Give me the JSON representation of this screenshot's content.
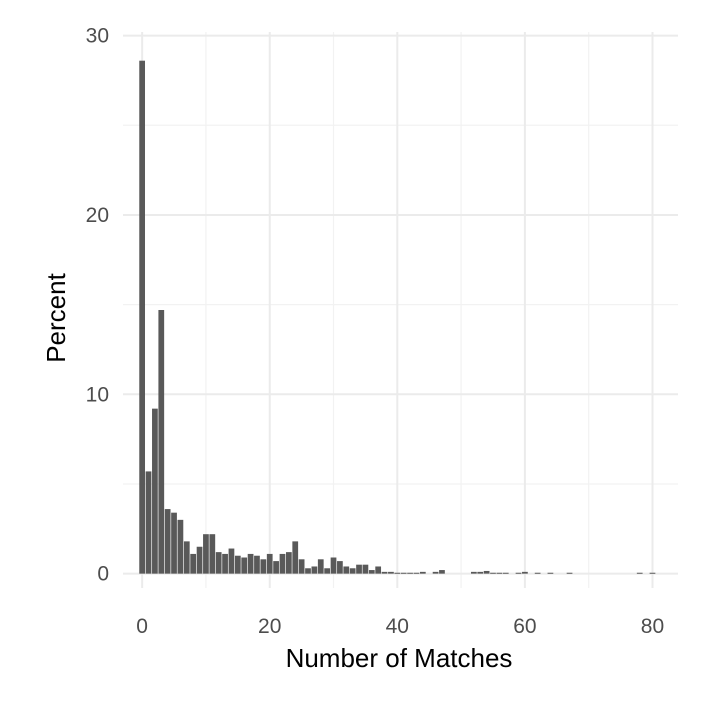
{
  "chart_data": {
    "type": "bar",
    "xlabel": "Number of Matches",
    "ylabel": "Percent",
    "xlim": [
      -3,
      84
    ],
    "ylim": [
      -0.8,
      30.2
    ],
    "x_ticks": [
      0,
      20,
      40,
      60,
      80
    ],
    "y_ticks": [
      0,
      10,
      20,
      30
    ],
    "grid": true,
    "bar_color": "#595959",
    "x": [
      0,
      1,
      2,
      3,
      4,
      5,
      6,
      7,
      8,
      9,
      10,
      11,
      12,
      13,
      14,
      15,
      16,
      17,
      18,
      19,
      20,
      21,
      22,
      23,
      24,
      25,
      26,
      27,
      28,
      29,
      30,
      31,
      32,
      33,
      34,
      35,
      36,
      37,
      38,
      39,
      40,
      41,
      42,
      43,
      44,
      45,
      46,
      47,
      48,
      49,
      50,
      51,
      52,
      53,
      54,
      55,
      56,
      57,
      58,
      59,
      60,
      61,
      62,
      63,
      64,
      65,
      66,
      67,
      68,
      69,
      70,
      71,
      72,
      73,
      74,
      75,
      76,
      77,
      78,
      79,
      80
    ],
    "values": [
      28.6,
      5.7,
      9.2,
      14.7,
      3.6,
      3.4,
      3.0,
      1.8,
      1.1,
      1.5,
      2.2,
      2.2,
      1.2,
      1.1,
      1.4,
      1.0,
      0.9,
      1.1,
      1.0,
      0.8,
      1.1,
      0.7,
      1.1,
      1.2,
      1.8,
      0.8,
      0.3,
      0.4,
      0.8,
      0.3,
      0.9,
      0.7,
      0.4,
      0.3,
      0.5,
      0.5,
      0.2,
      0.4,
      0.1,
      0.1,
      0.05,
      0.05,
      0.05,
      0.05,
      0.1,
      0.0,
      0.1,
      0.2,
      0.0,
      0.0,
      0.0,
      0.0,
      0.1,
      0.1,
      0.15,
      0.05,
      0.05,
      0.05,
      0.0,
      0.05,
      0.1,
      0.0,
      0.05,
      0.0,
      0.05,
      0.0,
      0.0,
      0.05,
      0.0,
      0.0,
      0.0,
      0.0,
      0.0,
      0.0,
      0.0,
      0.0,
      0.0,
      0.0,
      0.05,
      0.0,
      0.05
    ]
  }
}
